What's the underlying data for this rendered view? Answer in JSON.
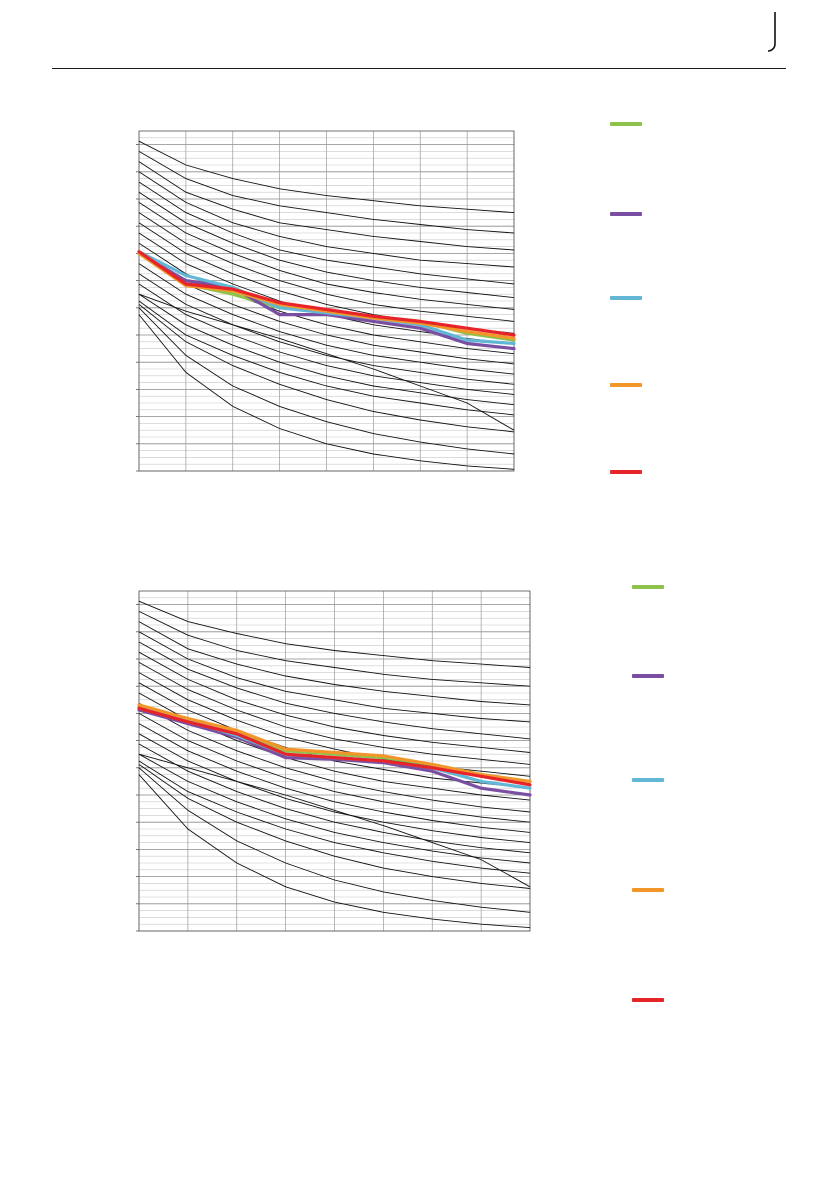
{
  "chart_data": [
    {
      "type": "line",
      "title": "",
      "xlabel": "",
      "ylabel": "",
      "grid": true,
      "legend_placement": "right",
      "x": [
        0,
        1,
        2,
        3,
        4,
        5,
        6,
        7,
        8
      ],
      "xlim": [
        0,
        8
      ],
      "ylim": [
        0,
        1
      ],
      "grid_minor_y": 0.02,
      "grid_major_y": 0.08,
      "reference_curves": [
        [
          0.97,
          0.9,
          0.86,
          0.83,
          0.81,
          0.795,
          0.78,
          0.77,
          0.76
        ],
        [
          0.94,
          0.86,
          0.81,
          0.78,
          0.76,
          0.74,
          0.725,
          0.71,
          0.7
        ],
        [
          0.91,
          0.82,
          0.77,
          0.73,
          0.71,
          0.69,
          0.675,
          0.66,
          0.65
        ],
        [
          0.88,
          0.79,
          0.73,
          0.69,
          0.66,
          0.64,
          0.62,
          0.61,
          0.6
        ],
        [
          0.85,
          0.76,
          0.7,
          0.65,
          0.62,
          0.6,
          0.58,
          0.565,
          0.55
        ],
        [
          0.82,
          0.73,
          0.67,
          0.62,
          0.585,
          0.56,
          0.54,
          0.525,
          0.51
        ],
        [
          0.79,
          0.7,
          0.64,
          0.59,
          0.55,
          0.525,
          0.505,
          0.49,
          0.475
        ],
        [
          0.76,
          0.67,
          0.61,
          0.56,
          0.52,
          0.49,
          0.47,
          0.455,
          0.44
        ],
        [
          0.73,
          0.64,
          0.58,
          0.53,
          0.49,
          0.46,
          0.44,
          0.42,
          0.405
        ],
        [
          0.7,
          0.61,
          0.55,
          0.5,
          0.46,
          0.43,
          0.41,
          0.39,
          0.375
        ],
        [
          0.67,
          0.58,
          0.52,
          0.47,
          0.43,
          0.4,
          0.38,
          0.36,
          0.345
        ],
        [
          0.64,
          0.55,
          0.49,
          0.44,
          0.4,
          0.37,
          0.35,
          0.33,
          0.315
        ],
        [
          0.61,
          0.52,
          0.46,
          0.41,
          0.37,
          0.34,
          0.32,
          0.3,
          0.285
        ],
        [
          0.58,
          0.49,
          0.43,
          0.38,
          0.34,
          0.31,
          0.29,
          0.27,
          0.255
        ],
        [
          0.55,
          0.46,
          0.4,
          0.35,
          0.31,
          0.28,
          0.26,
          0.24,
          0.225
        ],
        [
          0.52,
          0.43,
          0.37,
          0.32,
          0.28,
          0.25,
          0.23,
          0.21,
          0.195
        ],
        [
          0.5,
          0.4,
          0.34,
          0.29,
          0.25,
          0.22,
          0.2,
          0.18,
          0.165
        ],
        [
          0.52,
          0.47,
          0.43,
          0.39,
          0.345,
          0.3,
          0.25,
          0.2,
          0.12
        ],
        [
          0.49,
          0.38,
          0.31,
          0.255,
          0.21,
          0.175,
          0.15,
          0.13,
          0.115
        ],
        [
          0.48,
          0.34,
          0.25,
          0.19,
          0.145,
          0.11,
          0.085,
          0.065,
          0.05
        ],
        [
          0.46,
          0.29,
          0.19,
          0.125,
          0.08,
          0.05,
          0.03,
          0.015,
          0.005
        ]
      ],
      "series": [
        {
          "color": "#8dc34a",
          "values": [
            0.64,
            0.55,
            0.52,
            0.48,
            0.47,
            0.455,
            0.44,
            0.405,
            0.385
          ]
        },
        {
          "color": "#7a4fa3",
          "values": [
            0.64,
            0.56,
            0.54,
            0.46,
            0.46,
            0.44,
            0.42,
            0.375,
            0.36
          ]
        },
        {
          "color": "#62b7d6",
          "values": [
            0.645,
            0.575,
            0.54,
            0.48,
            0.465,
            0.45,
            0.43,
            0.385,
            0.375
          ]
        },
        {
          "color": "#f2962a",
          "values": [
            0.64,
            0.545,
            0.53,
            0.49,
            0.47,
            0.45,
            0.435,
            0.41,
            0.39
          ]
        },
        {
          "color": "#e8242b",
          "values": [
            0.645,
            0.55,
            0.535,
            0.495,
            0.475,
            0.455,
            0.44,
            0.42,
            0.4
          ]
        }
      ]
    },
    {
      "type": "line",
      "title": "",
      "xlabel": "",
      "ylabel": "",
      "grid": true,
      "legend_placement": "right",
      "x": [
        0,
        1,
        2,
        3,
        4,
        5,
        6,
        7,
        8
      ],
      "xlim": [
        0,
        8
      ],
      "ylim": [
        0,
        1
      ],
      "grid_minor_y": 0.02,
      "grid_major_y": 0.08,
      "reference_curves": [
        [
          0.97,
          0.91,
          0.875,
          0.845,
          0.825,
          0.81,
          0.795,
          0.785,
          0.775
        ],
        [
          0.94,
          0.87,
          0.825,
          0.795,
          0.775,
          0.755,
          0.74,
          0.73,
          0.72
        ],
        [
          0.91,
          0.83,
          0.785,
          0.75,
          0.725,
          0.705,
          0.69,
          0.675,
          0.665
        ],
        [
          0.88,
          0.8,
          0.745,
          0.705,
          0.68,
          0.655,
          0.64,
          0.625,
          0.615
        ],
        [
          0.85,
          0.77,
          0.715,
          0.67,
          0.64,
          0.615,
          0.595,
          0.58,
          0.565
        ],
        [
          0.82,
          0.74,
          0.68,
          0.635,
          0.6,
          0.575,
          0.555,
          0.54,
          0.525
        ],
        [
          0.79,
          0.71,
          0.65,
          0.6,
          0.565,
          0.54,
          0.52,
          0.505,
          0.49
        ],
        [
          0.76,
          0.68,
          0.62,
          0.57,
          0.535,
          0.505,
          0.485,
          0.47,
          0.455
        ],
        [
          0.73,
          0.65,
          0.59,
          0.54,
          0.5,
          0.475,
          0.45,
          0.435,
          0.42
        ],
        [
          0.7,
          0.62,
          0.56,
          0.51,
          0.47,
          0.44,
          0.42,
          0.4,
          0.385
        ],
        [
          0.67,
          0.59,
          0.53,
          0.48,
          0.44,
          0.41,
          0.385,
          0.365,
          0.35
        ],
        [
          0.64,
          0.56,
          0.5,
          0.45,
          0.41,
          0.38,
          0.355,
          0.335,
          0.32
        ],
        [
          0.61,
          0.53,
          0.47,
          0.42,
          0.38,
          0.35,
          0.325,
          0.305,
          0.29
        ],
        [
          0.58,
          0.5,
          0.44,
          0.39,
          0.35,
          0.32,
          0.295,
          0.275,
          0.26
        ],
        [
          0.55,
          0.47,
          0.41,
          0.36,
          0.32,
          0.29,
          0.265,
          0.245,
          0.23
        ],
        [
          0.52,
          0.44,
          0.38,
          0.33,
          0.29,
          0.26,
          0.235,
          0.215,
          0.2
        ],
        [
          0.5,
          0.41,
          0.35,
          0.3,
          0.26,
          0.23,
          0.205,
          0.185,
          0.17
        ],
        [
          0.52,
          0.48,
          0.44,
          0.4,
          0.355,
          0.31,
          0.26,
          0.21,
          0.13
        ],
        [
          0.49,
          0.39,
          0.32,
          0.265,
          0.22,
          0.185,
          0.16,
          0.14,
          0.125
        ],
        [
          0.48,
          0.355,
          0.265,
          0.2,
          0.15,
          0.115,
          0.09,
          0.07,
          0.055
        ],
        [
          0.46,
          0.3,
          0.2,
          0.13,
          0.085,
          0.055,
          0.035,
          0.02,
          0.01
        ]
      ],
      "series": [
        {
          "color": "#8dc34a",
          "values": [
            0.66,
            0.62,
            0.58,
            0.53,
            0.52,
            0.51,
            0.49,
            0.46,
            0.44
          ]
        },
        {
          "color": "#7a4fa3",
          "values": [
            0.65,
            0.61,
            0.57,
            0.51,
            0.505,
            0.495,
            0.47,
            0.42,
            0.4
          ]
        },
        {
          "color": "#62b7d6",
          "values": [
            0.655,
            0.62,
            0.575,
            0.52,
            0.51,
            0.5,
            0.48,
            0.44,
            0.42
          ]
        },
        {
          "color": "#f2962a",
          "values": [
            0.665,
            0.625,
            0.59,
            0.535,
            0.525,
            0.515,
            0.49,
            0.46,
            0.44
          ]
        },
        {
          "color": "#e8242b",
          "values": [
            0.655,
            0.615,
            0.58,
            0.52,
            0.51,
            0.5,
            0.48,
            0.455,
            0.43
          ]
        }
      ]
    }
  ]
}
